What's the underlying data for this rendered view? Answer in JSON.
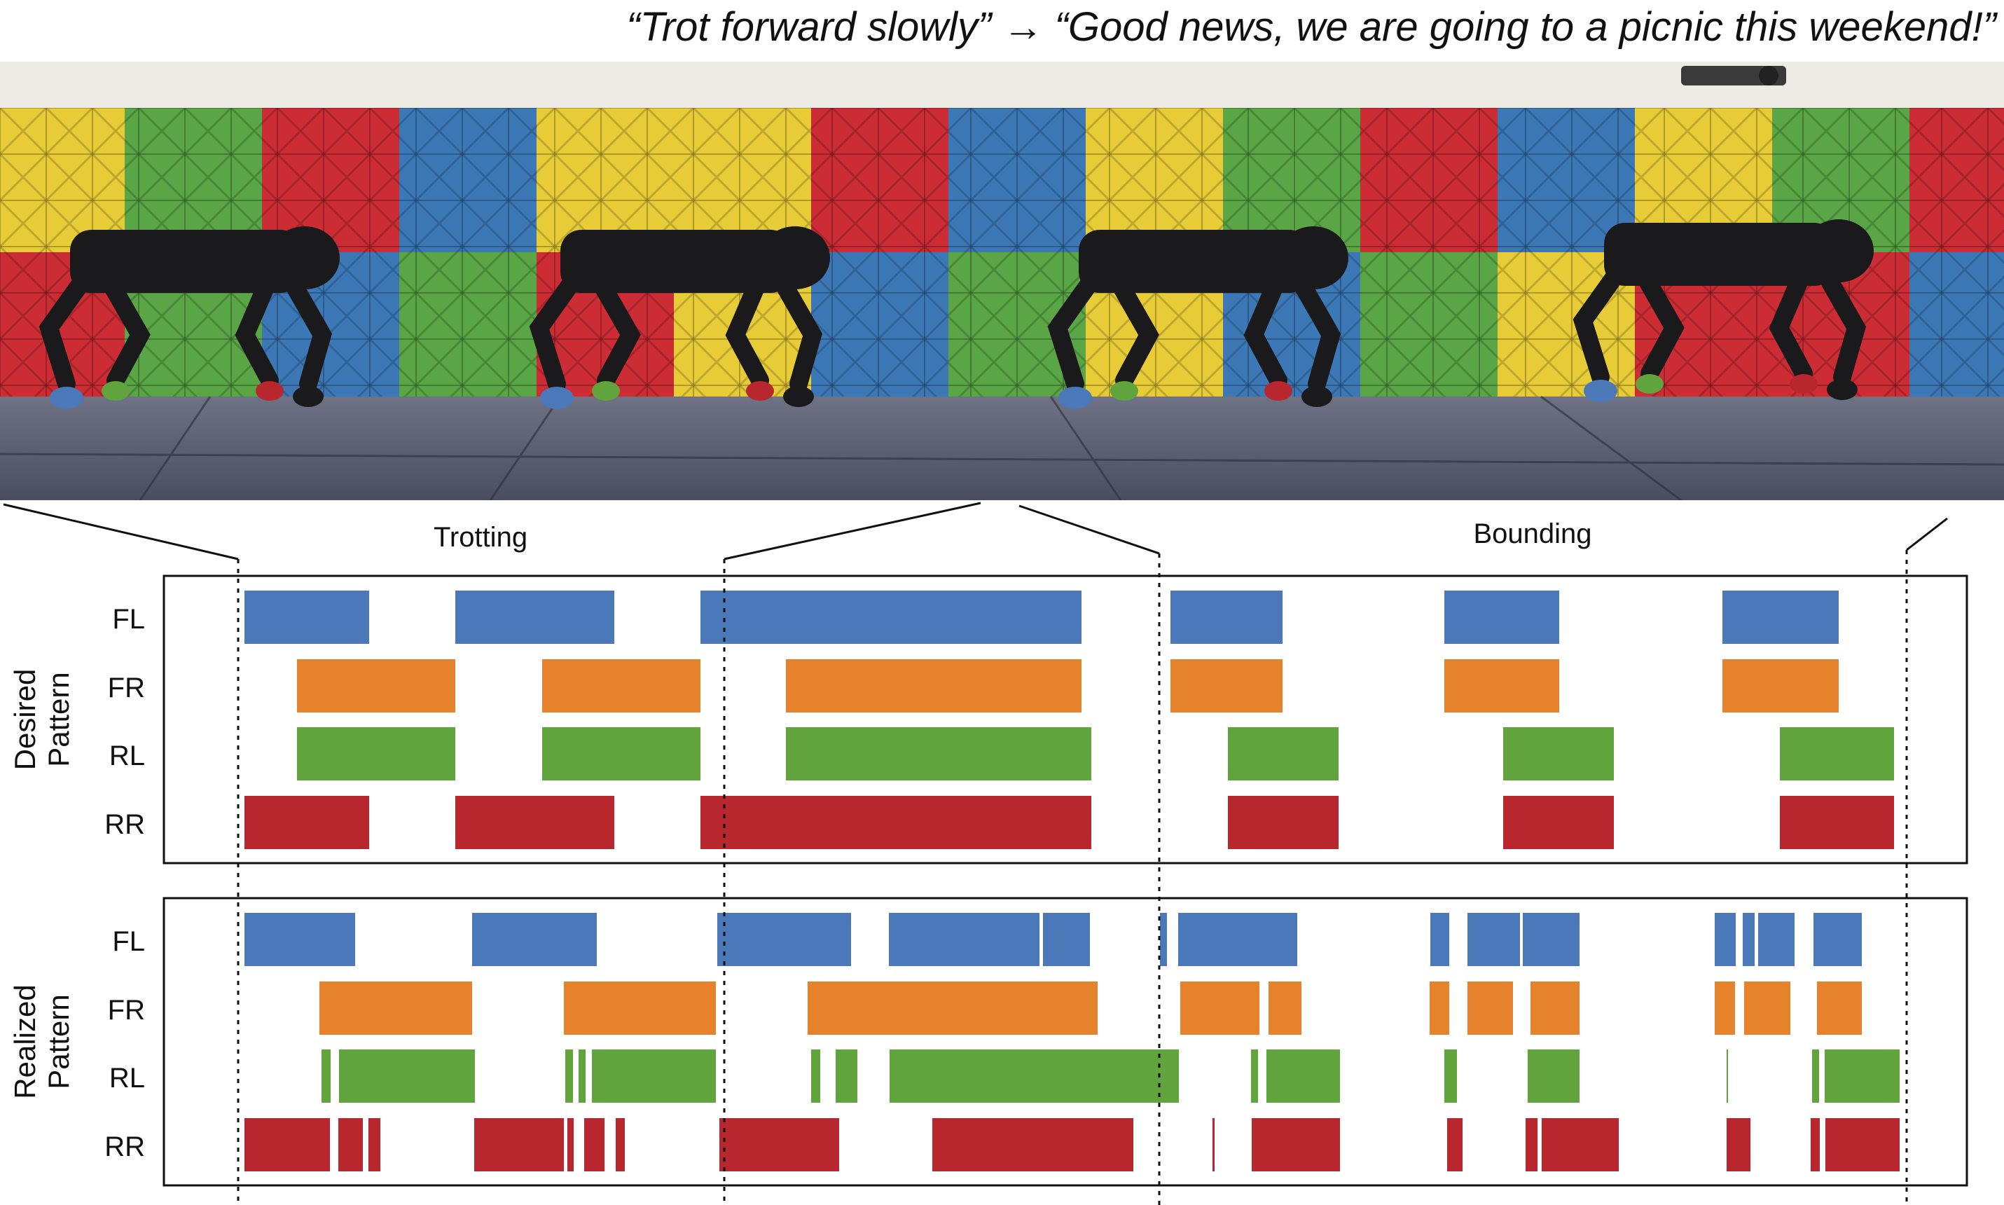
{
  "caption": "“Trot forward slowly” → “Good news, we are going to a picnic this weekend!”",
  "phases": [
    "Trotting",
    "Bounding"
  ],
  "legs": [
    "FL",
    "FR",
    "RL",
    "RR"
  ],
  "panels": [
    {
      "line1": "Desired",
      "line2": "Pattern"
    },
    {
      "line1": "Realized",
      "line2": "Pattern"
    }
  ],
  "colors": {
    "FL": "#4a78b8",
    "FR": "#e6822b",
    "RL": "#61a33c",
    "RR": "#b8272d"
  },
  "wall_palette": [
    "#e8cc37",
    "#5aa646",
    "#cc2c34",
    "#3c78b6"
  ],
  "photo_icons": [
    "quadruped-robot-icon",
    "quadruped-robot-icon",
    "quadruped-robot-icon",
    "quadruped-robot-icon",
    "ceiling-camera-icon"
  ]
}
